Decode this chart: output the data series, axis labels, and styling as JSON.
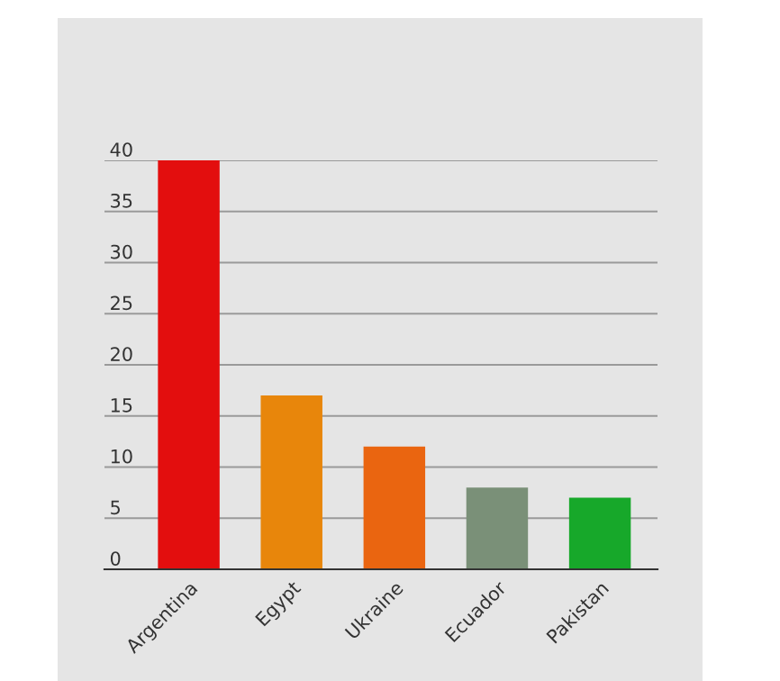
{
  "chart_data": {
    "type": "bar",
    "categories": [
      "Argentina",
      "Egypt",
      "Ukraine",
      "Ecuador",
      "Pakistan"
    ],
    "values": [
      40,
      17,
      12,
      8,
      7
    ],
    "colors": [
      "#e30e0e",
      "#e8860b",
      "#ea6510",
      "#7a9078",
      "#17a82a"
    ],
    "ylim": [
      0,
      40
    ],
    "yticks": [
      0,
      5,
      10,
      15,
      20,
      25,
      30,
      35,
      40
    ],
    "grid": "y"
  }
}
